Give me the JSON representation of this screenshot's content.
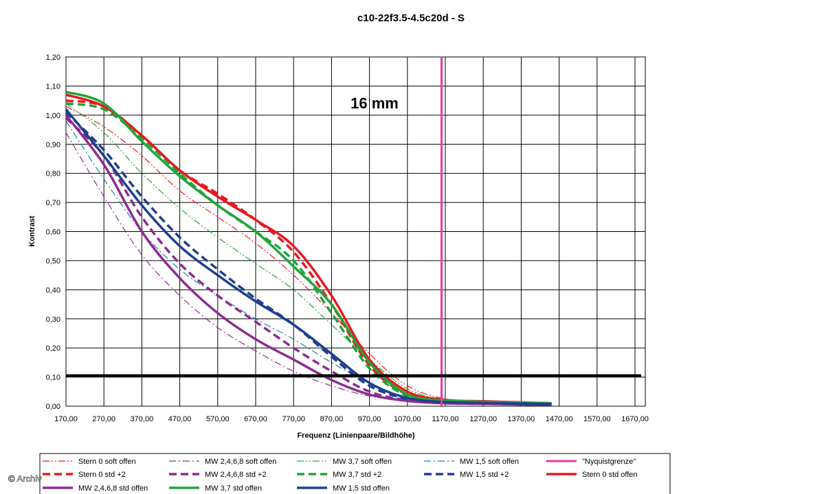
{
  "chart_data": {
    "type": "line",
    "title": "c10-22f3.5-4.5c20d - S",
    "annotation": "16 mm",
    "xlabel": "Frequenz (Linienpaare/Bildhöhe)",
    "ylabel": "Kontrast",
    "xlim": [
      170,
      1690
    ],
    "ylim": [
      0,
      1.2
    ],
    "x_ticks": [
      "170,00",
      "270,00",
      "370,00",
      "470,00",
      "570,00",
      "670,00",
      "770,00",
      "870,00",
      "970,00",
      "1070,00",
      "1170,00",
      "1270,00",
      "1370,00",
      "1470,00",
      "1570,00",
      "1670,00"
    ],
    "y_ticks": [
      "0,00",
      "0,10",
      "0,20",
      "0,30",
      "0,40",
      "0,50",
      "0,60",
      "0,70",
      "0,80",
      "0,90",
      "1,00",
      "1,10",
      "1,20"
    ],
    "grid": true,
    "legend_position": "bottom",
    "reference_lines": [
      {
        "orientation": "horizontal",
        "value": 0.105,
        "color": "#000000"
      }
    ],
    "series": [
      {
        "name": "Stern 0 soft offen",
        "color": "#e8191f",
        "style": "dashdotdot",
        "width": 1.2,
        "x": [
          170,
          270,
          370,
          470,
          570,
          670,
          770,
          870,
          970,
          1070,
          1170,
          1270,
          1370,
          1450
        ],
        "y": [
          1.03,
          0.96,
          0.86,
          0.74,
          0.65,
          0.56,
          0.45,
          0.32,
          0.18,
          0.07,
          0.025,
          0.018,
          0.013,
          0.01
        ]
      },
      {
        "name": "MW 2,4,6,8 soft offen",
        "color": "#8b2c8f",
        "style": "dashdot",
        "width": 1.2,
        "x": [
          170,
          270,
          370,
          470,
          570,
          670,
          770,
          870,
          970,
          1070,
          1170,
          1270,
          1370,
          1450
        ],
        "y": [
          0.94,
          0.72,
          0.52,
          0.38,
          0.27,
          0.19,
          0.12,
          0.07,
          0.035,
          0.018,
          0.01,
          0.008,
          0.006,
          0.005
        ]
      },
      {
        "name": "MW 3,7 soft offen",
        "color": "#22a33a",
        "style": "dashdotdot",
        "width": 1.2,
        "x": [
          170,
          270,
          370,
          470,
          570,
          670,
          770,
          870,
          970,
          1070,
          1170,
          1270,
          1370,
          1450
        ],
        "y": [
          1.04,
          0.94,
          0.8,
          0.68,
          0.58,
          0.49,
          0.4,
          0.28,
          0.16,
          0.06,
          0.02,
          0.015,
          0.012,
          0.01
        ]
      },
      {
        "name": "MW 1,5 soft offen",
        "color": "#1f77b4",
        "style": "dashdot",
        "width": 1.2,
        "x": [
          170,
          270,
          370,
          470,
          570,
          670,
          770,
          870,
          970,
          1070,
          1170,
          1270,
          1370,
          1450
        ],
        "y": [
          0.98,
          0.78,
          0.6,
          0.47,
          0.38,
          0.3,
          0.23,
          0.15,
          0.08,
          0.03,
          0.012,
          0.01,
          0.008,
          0.007
        ]
      },
      {
        "name": "\"Nyquistgrenze\"",
        "color": "#e535b0",
        "style": "solid",
        "width": 3,
        "x": [
          1160,
          1160
        ],
        "y": [
          0,
          1.2
        ]
      },
      {
        "name": "Stern 0 std +2",
        "color": "#e8191f",
        "style": "dashed",
        "width": 3.5,
        "x": [
          170,
          270,
          370,
          470,
          570,
          670,
          770,
          870,
          970,
          1070,
          1170,
          1270,
          1370,
          1450
        ],
        "y": [
          1.05,
          1.03,
          0.93,
          0.81,
          0.73,
          0.64,
          0.53,
          0.35,
          0.14,
          0.04,
          0.02,
          0.015,
          0.012,
          0.01
        ]
      },
      {
        "name": "MW 2,4,6,8 std +2",
        "color": "#8b2c8f",
        "style": "dashed",
        "width": 3.5,
        "x": [
          170,
          270,
          370,
          470,
          570,
          670,
          770,
          870,
          970,
          1070,
          1170,
          1270,
          1370,
          1450
        ],
        "y": [
          0.99,
          0.86,
          0.65,
          0.49,
          0.38,
          0.29,
          0.2,
          0.12,
          0.05,
          0.02,
          0.01,
          0.008,
          0.006,
          0.005
        ]
      },
      {
        "name": "MW 3,7 std +2",
        "color": "#22a33a",
        "style": "dashed",
        "width": 3.5,
        "x": [
          170,
          270,
          370,
          470,
          570,
          670,
          770,
          870,
          970,
          1070,
          1170,
          1270,
          1370,
          1450
        ],
        "y": [
          1.04,
          1.02,
          0.92,
          0.8,
          0.69,
          0.6,
          0.5,
          0.32,
          0.13,
          0.035,
          0.018,
          0.014,
          0.011,
          0.009
        ]
      },
      {
        "name": "MW 1,5 std +2",
        "color": "#1f3f8f",
        "style": "dashed",
        "width": 3.5,
        "x": [
          170,
          270,
          370,
          470,
          570,
          670,
          770,
          870,
          970,
          1070,
          1170,
          1270,
          1370,
          1450
        ],
        "y": [
          1.01,
          0.88,
          0.72,
          0.58,
          0.47,
          0.37,
          0.28,
          0.17,
          0.07,
          0.025,
          0.012,
          0.01,
          0.008,
          0.007
        ]
      },
      {
        "name": "Stern 0 std offen",
        "color": "#e8191f",
        "style": "solid",
        "width": 3.5,
        "x": [
          170,
          270,
          370,
          470,
          570,
          670,
          770,
          870,
          970,
          1070,
          1170,
          1270,
          1370,
          1450
        ],
        "y": [
          1.07,
          1.03,
          0.93,
          0.81,
          0.72,
          0.64,
          0.55,
          0.38,
          0.16,
          0.05,
          0.022,
          0.017,
          0.013,
          0.01
        ]
      },
      {
        "name": "MW 2,4,6,8 std offen",
        "color": "#8b2c8f",
        "style": "solid",
        "width": 3.5,
        "x": [
          170,
          270,
          370,
          470,
          570,
          670,
          770,
          870,
          970,
          1070,
          1170,
          1270,
          1370,
          1450
        ],
        "y": [
          1.0,
          0.83,
          0.6,
          0.44,
          0.32,
          0.23,
          0.16,
          0.09,
          0.04,
          0.018,
          0.01,
          0.008,
          0.006,
          0.005
        ]
      },
      {
        "name": "MW 3,7 std offen",
        "color": "#22a33a",
        "style": "solid",
        "width": 3.5,
        "x": [
          170,
          270,
          370,
          470,
          570,
          670,
          770,
          870,
          970,
          1070,
          1170,
          1270,
          1370,
          1450
        ],
        "y": [
          1.08,
          1.04,
          0.91,
          0.79,
          0.69,
          0.6,
          0.48,
          0.35,
          0.15,
          0.04,
          0.02,
          0.015,
          0.012,
          0.01
        ]
      },
      {
        "name": "MW 1,5 std offen",
        "color": "#1f3f8f",
        "style": "solid",
        "width": 3.5,
        "x": [
          170,
          270,
          370,
          470,
          570,
          670,
          770,
          870,
          970,
          1070,
          1170,
          1270,
          1370,
          1450
        ],
        "y": [
          1.02,
          0.86,
          0.69,
          0.55,
          0.45,
          0.36,
          0.28,
          0.18,
          0.08,
          0.028,
          0.014,
          0.011,
          0.009,
          0.008
        ]
      }
    ],
    "legend_order": [
      "Stern 0 soft offen",
      "MW 2,4,6,8 soft offen",
      "MW 3,7 soft offen",
      "MW 1,5 soft offen",
      "\"Nyquistgrenze\"",
      "Stern 0 std +2",
      "MW 2,4,6,8 std +2",
      "MW 3,7 std +2",
      "MW 1,5 std +2",
      "Stern 0 std offen",
      "MW 2,4,6,8 std offen",
      "MW 3,7 std offen",
      "MW 1,5 std offen"
    ]
  },
  "watermark": "© Archiv"
}
